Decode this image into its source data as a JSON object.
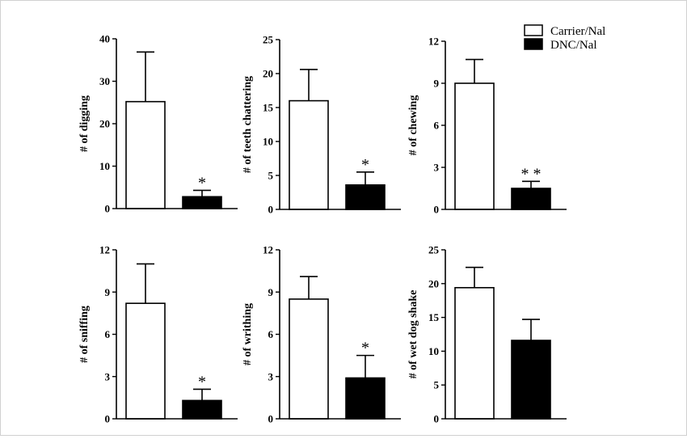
{
  "legend": {
    "items": [
      {
        "label": "Carrier/Nal",
        "color": "#ffffff"
      },
      {
        "label": "DNC/Nal",
        "color": "#000000"
      }
    ]
  },
  "chart_data": [
    {
      "type": "bar",
      "ylabel": "# of digging",
      "ylim": [
        0,
        40
      ],
      "ticks": [
        0,
        10,
        20,
        30,
        40
      ],
      "series": [
        {
          "name": "Carrier/Nal",
          "value": 25.2,
          "error": 11.7
        },
        {
          "name": "DNC/Nal",
          "value": 2.8,
          "error": 1.5
        }
      ],
      "significance": "*"
    },
    {
      "type": "bar",
      "ylabel": "# of teeth chattering",
      "ylim": [
        0,
        25
      ],
      "ticks": [
        0,
        5,
        10,
        15,
        20,
        25
      ],
      "series": [
        {
          "name": "Carrier/Nal",
          "value": 16.0,
          "error": 4.6
        },
        {
          "name": "DNC/Nal",
          "value": 3.6,
          "error": 1.9
        }
      ],
      "significance": "*"
    },
    {
      "type": "bar",
      "ylabel": "# of chewing",
      "ylim": [
        0,
        12
      ],
      "ticks": [
        0,
        3,
        6,
        9,
        12
      ],
      "series": [
        {
          "name": "Carrier/Nal",
          "value": 9.0,
          "error": 1.7
        },
        {
          "name": "DNC/Nal",
          "value": 1.5,
          "error": 0.5
        }
      ],
      "significance": "**"
    },
    {
      "type": "bar",
      "ylabel": "# of sniffing",
      "ylim": [
        0,
        12
      ],
      "ticks": [
        0,
        3,
        6,
        9,
        12
      ],
      "series": [
        {
          "name": "Carrier/Nal",
          "value": 8.2,
          "error": 2.8
        },
        {
          "name": "DNC/Nal",
          "value": 1.3,
          "error": 0.8
        }
      ],
      "significance": "*"
    },
    {
      "type": "bar",
      "ylabel": "# of writhing",
      "ylim": [
        0,
        12
      ],
      "ticks": [
        0,
        3,
        6,
        9,
        12
      ],
      "series": [
        {
          "name": "Carrier/Nal",
          "value": 8.5,
          "error": 1.6
        },
        {
          "name": "DNC/Nal",
          "value": 2.9,
          "error": 1.6
        }
      ],
      "significance": "*"
    },
    {
      "type": "bar",
      "ylabel": "# of wet dog shake",
      "ylim": [
        0,
        25
      ],
      "ticks": [
        0,
        5,
        10,
        15,
        20,
        25
      ],
      "series": [
        {
          "name": "Carrier/Nal",
          "value": 19.4,
          "error": 3.0
        },
        {
          "name": "DNC/Nal",
          "value": 11.6,
          "error": 3.1
        }
      ],
      "significance": ""
    }
  ]
}
